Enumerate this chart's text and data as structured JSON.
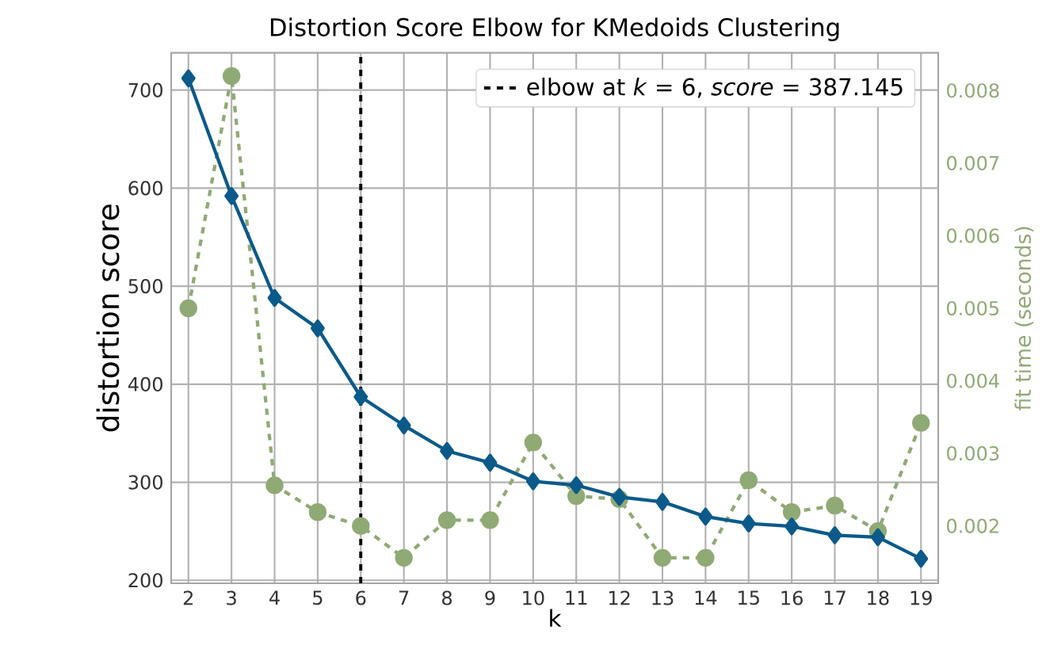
{
  "chart_data": {
    "type": "line",
    "title": "Distortion Score Elbow for KMedoids Clustering",
    "xlabel": "k",
    "ylabel": "distortion score",
    "y2label": "fit time (seconds)",
    "x": [
      2,
      3,
      4,
      5,
      6,
      7,
      8,
      9,
      10,
      11,
      12,
      13,
      14,
      15,
      16,
      17,
      18,
      19
    ],
    "series": [
      {
        "color": "#0b5a8a",
        "marker": "diamond",
        "line_style": "solid",
        "values": [
          712,
          592,
          488,
          457,
          387.145,
          358,
          332,
          320,
          301,
          297,
          285,
          280,
          265,
          258,
          255,
          246,
          244,
          222
        ]
      },
      {
        "color": "#8faa74",
        "marker": "circle",
        "line_style": "dashed",
        "axis": "y2",
        "values": [
          0.005,
          0.0082,
          0.00256,
          0.00219,
          0.002,
          0.00156,
          0.00208,
          0.00208,
          0.00315,
          0.00241,
          0.00237,
          0.00156,
          0.00156,
          0.00263,
          0.00219,
          0.00228,
          0.00193,
          0.00342
        ]
      }
    ],
    "xlim": [
      1.6,
      19.4
    ],
    "xticks": [
      2,
      3,
      4,
      5,
      6,
      7,
      8,
      9,
      10,
      11,
      12,
      13,
      14,
      15,
      16,
      17,
      18,
      19
    ],
    "ylim": [
      197,
      738
    ],
    "yticks": [
      200,
      300,
      400,
      500,
      600,
      700
    ],
    "y2lim": [
      0.00121,
      0.00852
    ],
    "y2ticks": [
      0.002,
      0.003,
      0.004,
      0.005,
      0.006,
      0.007,
      0.008
    ],
    "ref_lines": [
      {
        "axis": "x",
        "value": 6,
        "label": "elbow at *k* = 6, *score* = 387.145",
        "color": "#000000",
        "line_style": "dashed"
      }
    ],
    "grid": true,
    "legend": "top right"
  }
}
